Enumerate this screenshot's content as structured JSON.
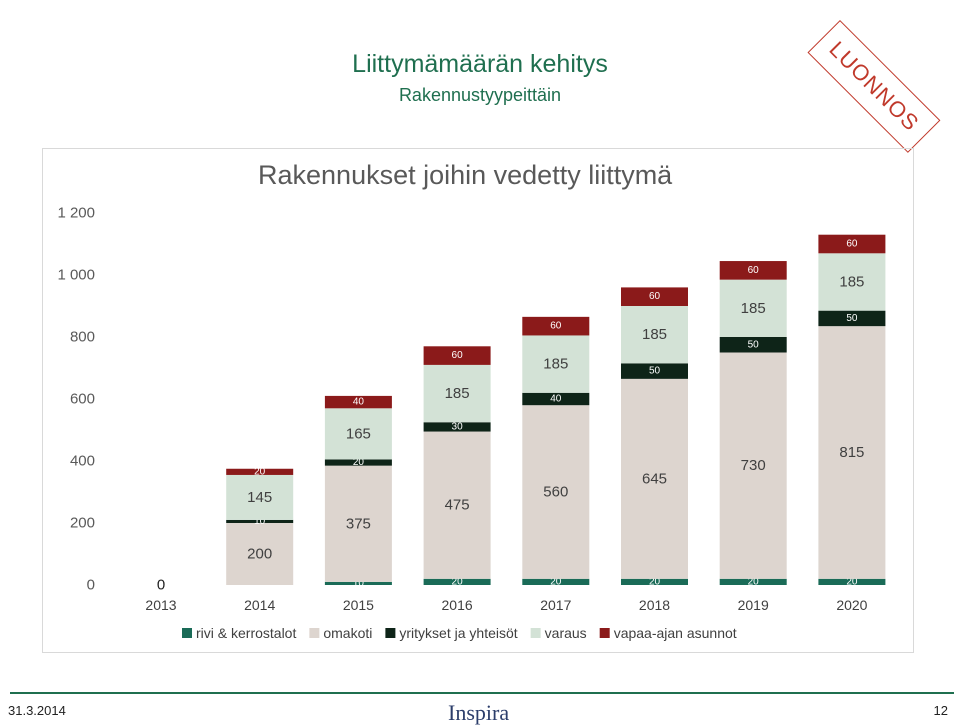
{
  "slide": {
    "title": "Liittymämäärän kehitys",
    "subtitle": "Rakennustyypeittäin",
    "stamp": "LUONNOS",
    "footer_date": "31.3.2014",
    "footer_logo": "Inspira",
    "page_number": "12"
  },
  "chart_data": {
    "type": "bar",
    "stacked": true,
    "title": "Rakennukset joihin vedetty liittymä",
    "xlabel": "",
    "ylabel": "",
    "ylim": [
      0,
      1200
    ],
    "yticks": [
      0,
      200,
      400,
      600,
      800,
      1000,
      1200
    ],
    "ytick_labels": [
      "0",
      "200",
      "400",
      "600",
      "800",
      "1 000",
      "1 200"
    ],
    "categories": [
      "2013",
      "2014",
      "2015",
      "2016",
      "2017",
      "2018",
      "2019",
      "2020"
    ],
    "grid": false,
    "legend_position": "bottom",
    "series": [
      {
        "name": "rivi & kerrostalot",
        "color": "#1a6b57",
        "values": [
          0,
          0,
          10,
          20,
          20,
          20,
          20,
          20
        ],
        "labels": [
          "0",
          "0",
          "10",
          "20",
          "20",
          "20",
          "20",
          "20"
        ]
      },
      {
        "name": "omakoti",
        "color": "#ddd5cf",
        "values": [
          0,
          200,
          375,
          475,
          560,
          645,
          730,
          815
        ],
        "labels": [
          "",
          "200",
          "375",
          "475",
          "560",
          "645",
          "730",
          "815"
        ]
      },
      {
        "name": "yritykset ja yhteisöt",
        "color": "#0e2418",
        "values": [
          0,
          10,
          20,
          30,
          40,
          50,
          50,
          50
        ],
        "labels": [
          "",
          "10",
          "20",
          "30",
          "40",
          "50",
          "50",
          "50"
        ]
      },
      {
        "name": "varaus",
        "color": "#d3e2d6",
        "values": [
          0,
          145,
          165,
          185,
          185,
          185,
          185,
          185
        ],
        "labels": [
          "",
          "145",
          "165",
          "185",
          "185",
          "185",
          "185",
          "185"
        ]
      },
      {
        "name": "vapaa-ajan asunnot",
        "color": "#8b1a1a",
        "values": [
          0,
          20,
          40,
          60,
          60,
          60,
          60,
          60
        ],
        "labels": [
          "",
          "20",
          "40",
          "60",
          "60",
          "60",
          "60",
          "60"
        ]
      }
    ]
  }
}
